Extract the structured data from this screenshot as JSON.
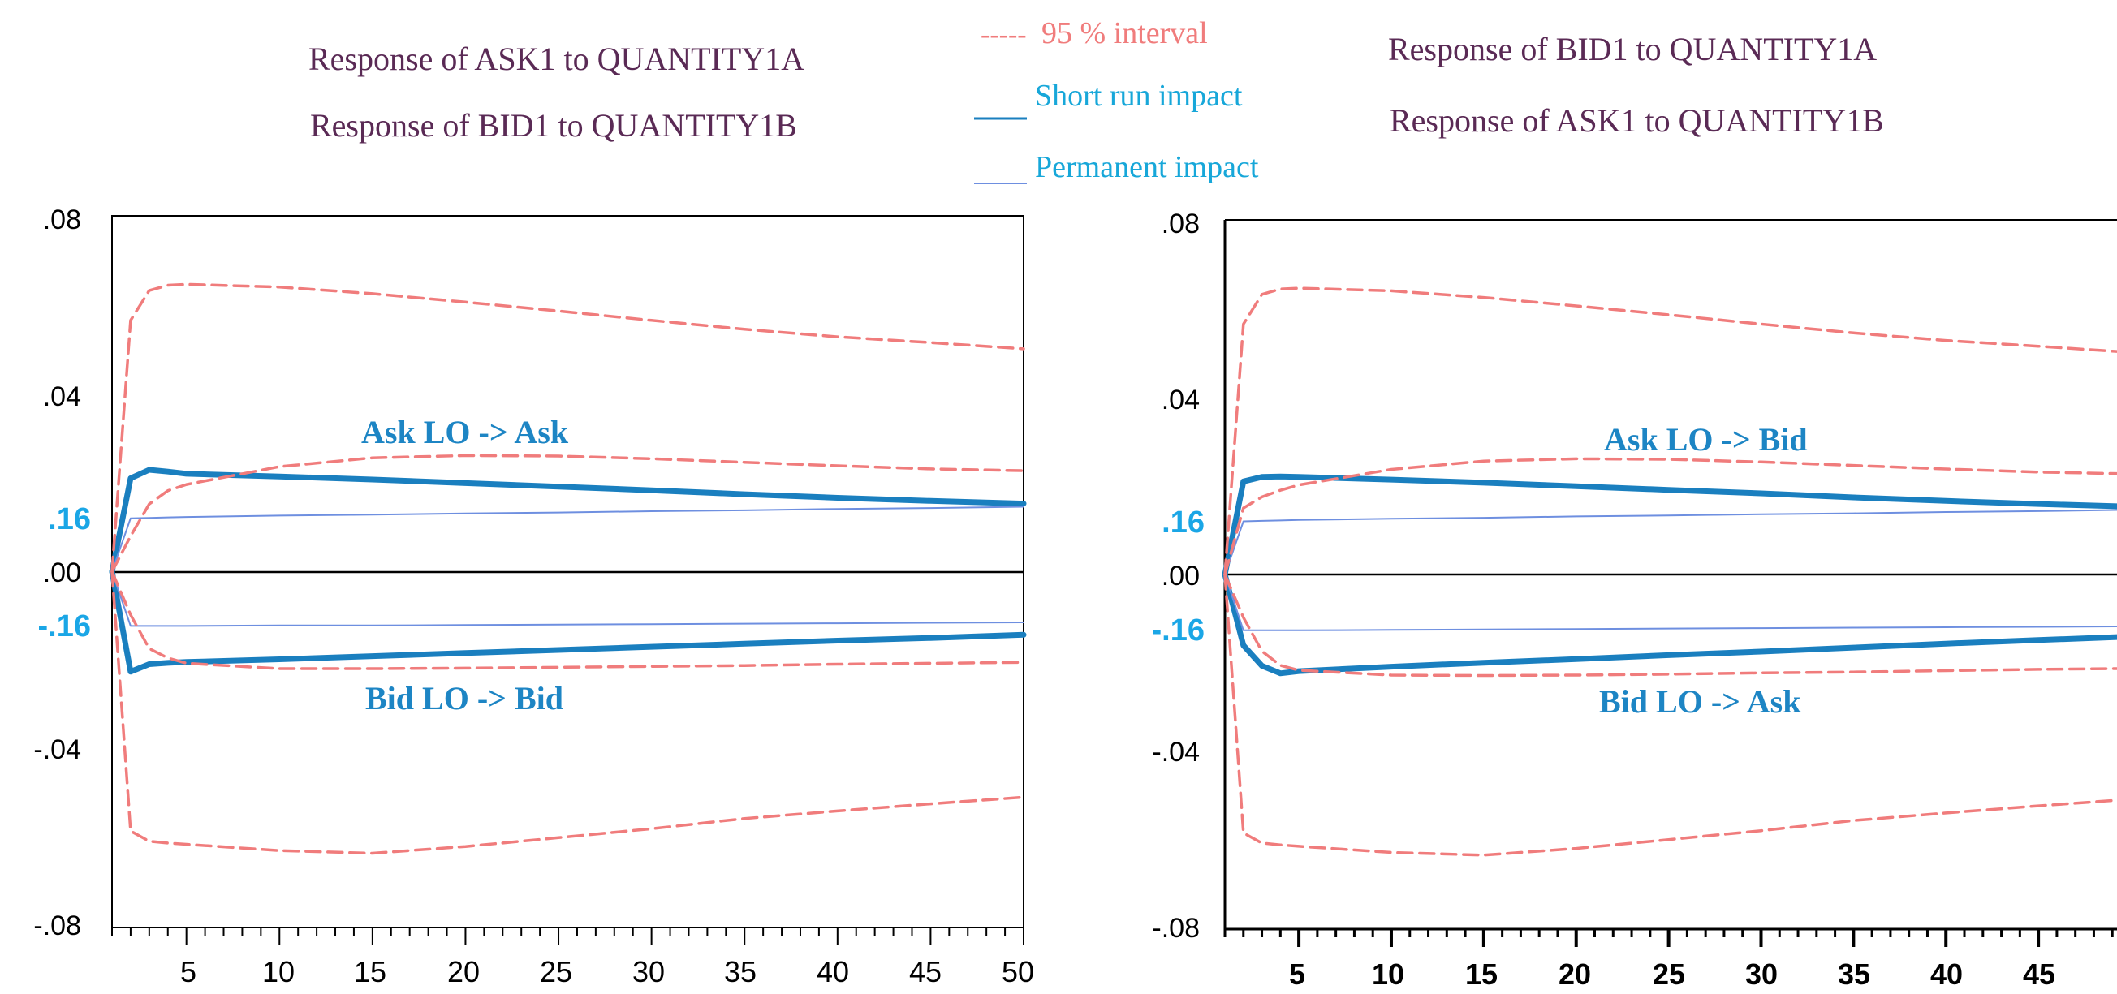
{
  "colors": {
    "title": "#5a2a55",
    "interval": "#f07c7c",
    "short_run": "#1a7fbf",
    "permanent": "#6e8fe0",
    "legend_text": "#17a7d9",
    "highlight_tick": "#1aa6e6",
    "series_label": "#1d85c4",
    "axis": "#000000"
  },
  "legend": {
    "interval_dash": "-----",
    "interval": "95 % interval",
    "short_run": "Short run impact",
    "permanent": "Permanent impact"
  },
  "panels": [
    {
      "titles": [
        "Response of ASK1 to QUANTITY1A",
        "Response of BID1 to QUANTITY1B"
      ],
      "upper_label": "Ask LO -> Ask",
      "lower_label": "Bid LO -> Bid",
      "y_ticks": [
        ".08",
        ".04",
        ".00",
        "-.04",
        "-.08"
      ],
      "highlight_ticks": [
        ".16",
        "-.16"
      ],
      "x_ticks": [
        "5",
        "10",
        "15",
        "20",
        "25",
        "30",
        "35",
        "40",
        "45",
        "50"
      ]
    },
    {
      "titles": [
        "Response of BID1 to QUANTITY1A",
        "Response of ASK1 to QUANTITY1B"
      ],
      "upper_label": "Ask LO -> Bid",
      "lower_label": "Bid LO -> Ask",
      "y_ticks": [
        ".08",
        ".04",
        ".00",
        "-.04",
        "-.08"
      ],
      "highlight_ticks": [
        ".16",
        "-.16"
      ],
      "x_ticks": [
        "5",
        "10",
        "15",
        "20",
        "25",
        "30",
        "35",
        "40",
        "45"
      ]
    }
  ],
  "chart_data": [
    {
      "type": "line",
      "title": "Response of ASK1 to QUANTITY1A / Response of BID1 to QUANTITY1B",
      "xlim": [
        1,
        50
      ],
      "ylim": [
        -0.08,
        0.08
      ],
      "x": [
        1,
        2,
        3,
        4,
        5,
        10,
        15,
        20,
        25,
        30,
        35,
        40,
        45,
        50
      ],
      "series": [
        {
          "name": "Ask LO -> Ask",
          "values": [
            0.0,
            0.021,
            0.0229,
            0.0225,
            0.022,
            0.0214,
            0.0207,
            0.0199,
            0.0191,
            0.0183,
            0.0174,
            0.0166,
            0.0159,
            0.0153
          ]
        },
        {
          "name": "Bid LO -> Bid",
          "values": [
            0.0,
            -0.0225,
            -0.0208,
            -0.0205,
            -0.0203,
            -0.0197,
            -0.019,
            -0.0183,
            -0.0176,
            -0.0169,
            -0.0162,
            -0.0155,
            -0.0149,
            -0.0142
          ]
        },
        {
          "values": [
            0.0,
            0.012,
            0.0121,
            0.0122,
            0.0123,
            0.0126,
            0.0128,
            0.0131,
            0.0133,
            0.0136,
            0.0138,
            0.0141,
            0.0143,
            0.0146
          ]
        },
        {
          "values": [
            0.0,
            -0.0122,
            -0.0122,
            -0.0122,
            -0.0122,
            -0.0121,
            -0.0121,
            -0.012,
            -0.0119,
            -0.0118,
            -0.0117,
            -0.0116,
            -0.0115,
            -0.0114
          ]
        },
        {
          "values": [
            0.0,
            0.0565,
            0.0632,
            0.0644,
            0.0646,
            0.064,
            0.0625,
            0.0606,
            0.0586,
            0.0565,
            0.0545,
            0.0528,
            0.0515,
            0.0501
          ]
        },
        {
          "values": [
            0.0,
            0.008,
            0.0152,
            0.0182,
            0.0196,
            0.0236,
            0.0256,
            0.0261,
            0.026,
            0.0254,
            0.0246,
            0.0238,
            0.0231,
            0.0227
          ]
        },
        {
          "values": [
            0.0,
            -0.0097,
            -0.0173,
            -0.0194,
            -0.0206,
            -0.0218,
            -0.0218,
            -0.0217,
            -0.0215,
            -0.0213,
            -0.0211,
            -0.0208,
            -0.0206,
            -0.0204
          ]
        },
        {
          "values": [
            0.0,
            -0.0583,
            -0.0606,
            -0.061,
            -0.0613,
            -0.0627,
            -0.0633,
            -0.0618,
            -0.0598,
            -0.0578,
            -0.0555,
            -0.0538,
            -0.0522,
            -0.0507
          ]
        }
      ]
    },
    {
      "type": "line",
      "title": "Response of BID1 to QUANTITY1A / Response of ASK1 to QUANTITY1B",
      "xlim": [
        1,
        50
      ],
      "ylim": [
        -0.08,
        0.08
      ],
      "x": [
        1,
        2,
        3,
        4,
        5,
        10,
        15,
        20,
        25,
        30,
        35,
        40,
        45,
        50
      ],
      "series": [
        {
          "name": "Ask LO -> Bid",
          "values": [
            0.0,
            0.021,
            0.022,
            0.0221,
            0.022,
            0.0214,
            0.0207,
            0.0199,
            0.0191,
            0.0183,
            0.0174,
            0.0166,
            0.0159,
            0.0153
          ]
        },
        {
          "name": "Bid LO -> Ask",
          "values": [
            0.0,
            -0.016,
            -0.0206,
            -0.0223,
            -0.0218,
            -0.0208,
            -0.0199,
            -0.0191,
            -0.0182,
            -0.0174,
            -0.0165,
            -0.0156,
            -0.0148,
            -0.014
          ]
        },
        {
          "values": [
            0.0,
            0.012,
            0.0121,
            0.0122,
            0.0123,
            0.0126,
            0.0128,
            0.0131,
            0.0133,
            0.0136,
            0.0138,
            0.0141,
            0.0143,
            0.0146
          ]
        },
        {
          "values": [
            0.0,
            -0.0126,
            -0.0126,
            -0.0126,
            -0.0126,
            -0.0125,
            -0.0124,
            -0.0123,
            -0.0122,
            -0.0121,
            -0.012,
            -0.0119,
            -0.0118,
            -0.0117
          ]
        },
        {
          "values": [
            0.0,
            0.0565,
            0.0632,
            0.0644,
            0.0646,
            0.064,
            0.0625,
            0.0606,
            0.0586,
            0.0565,
            0.0545,
            0.0528,
            0.0515,
            0.0501
          ]
        },
        {
          "values": [
            0.0,
            0.015,
            0.0175,
            0.019,
            0.0202,
            0.0237,
            0.0256,
            0.0261,
            0.026,
            0.0254,
            0.0246,
            0.0238,
            0.0231,
            0.0227
          ]
        },
        {
          "values": [
            0.0,
            -0.0097,
            -0.0173,
            -0.0205,
            -0.0216,
            -0.0227,
            -0.0228,
            -0.0227,
            -0.0225,
            -0.0222,
            -0.022,
            -0.0217,
            -0.0214,
            -0.0212
          ]
        },
        {
          "values": [
            0.0,
            -0.0583,
            -0.0606,
            -0.061,
            -0.0613,
            -0.0627,
            -0.0633,
            -0.0618,
            -0.0598,
            -0.0578,
            -0.0555,
            -0.0538,
            -0.0522,
            -0.0507
          ]
        }
      ]
    }
  ]
}
